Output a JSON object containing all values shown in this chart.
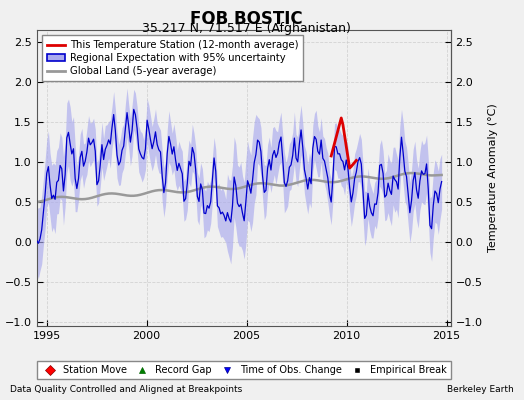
{
  "title": "FOB BOSTIC",
  "subtitle": "35.217 N, 71.517 E (Afghanistan)",
  "ylabel": "Temperature Anomaly (°C)",
  "xlim": [
    1994.5,
    2015.2
  ],
  "ylim": [
    -1.05,
    2.65
  ],
  "yticks": [
    -1,
    -0.5,
    0,
    0.5,
    1,
    1.5,
    2,
    2.5
  ],
  "xticks": [
    1995,
    2000,
    2005,
    2010,
    2015
  ],
  "footer_left": "Data Quality Controlled and Aligned at Breakpoints",
  "footer_right": "Berkeley Earth",
  "bg_color": "#f0f0f0",
  "plot_bg_color": "#f0f0f0",
  "grid_color": "#cccccc",
  "blue_line_color": "#0000cc",
  "blue_fill_color": "#aaaaee",
  "gray_line_color": "#999999",
  "red_line_color": "#dd0000",
  "legend_labels": [
    "This Temperature Station (12-month average)",
    "Regional Expectation with 95% uncertainty",
    "Global Land (5-year average)"
  ],
  "marker_legend": [
    {
      "label": "Station Move",
      "marker": "D",
      "color": "red"
    },
    {
      "label": "Record Gap",
      "marker": "^",
      "color": "green"
    },
    {
      "label": "Time of Obs. Change",
      "marker": "v",
      "color": "blue"
    },
    {
      "label": "Empirical Break",
      "marker": "s",
      "color": "black"
    }
  ]
}
